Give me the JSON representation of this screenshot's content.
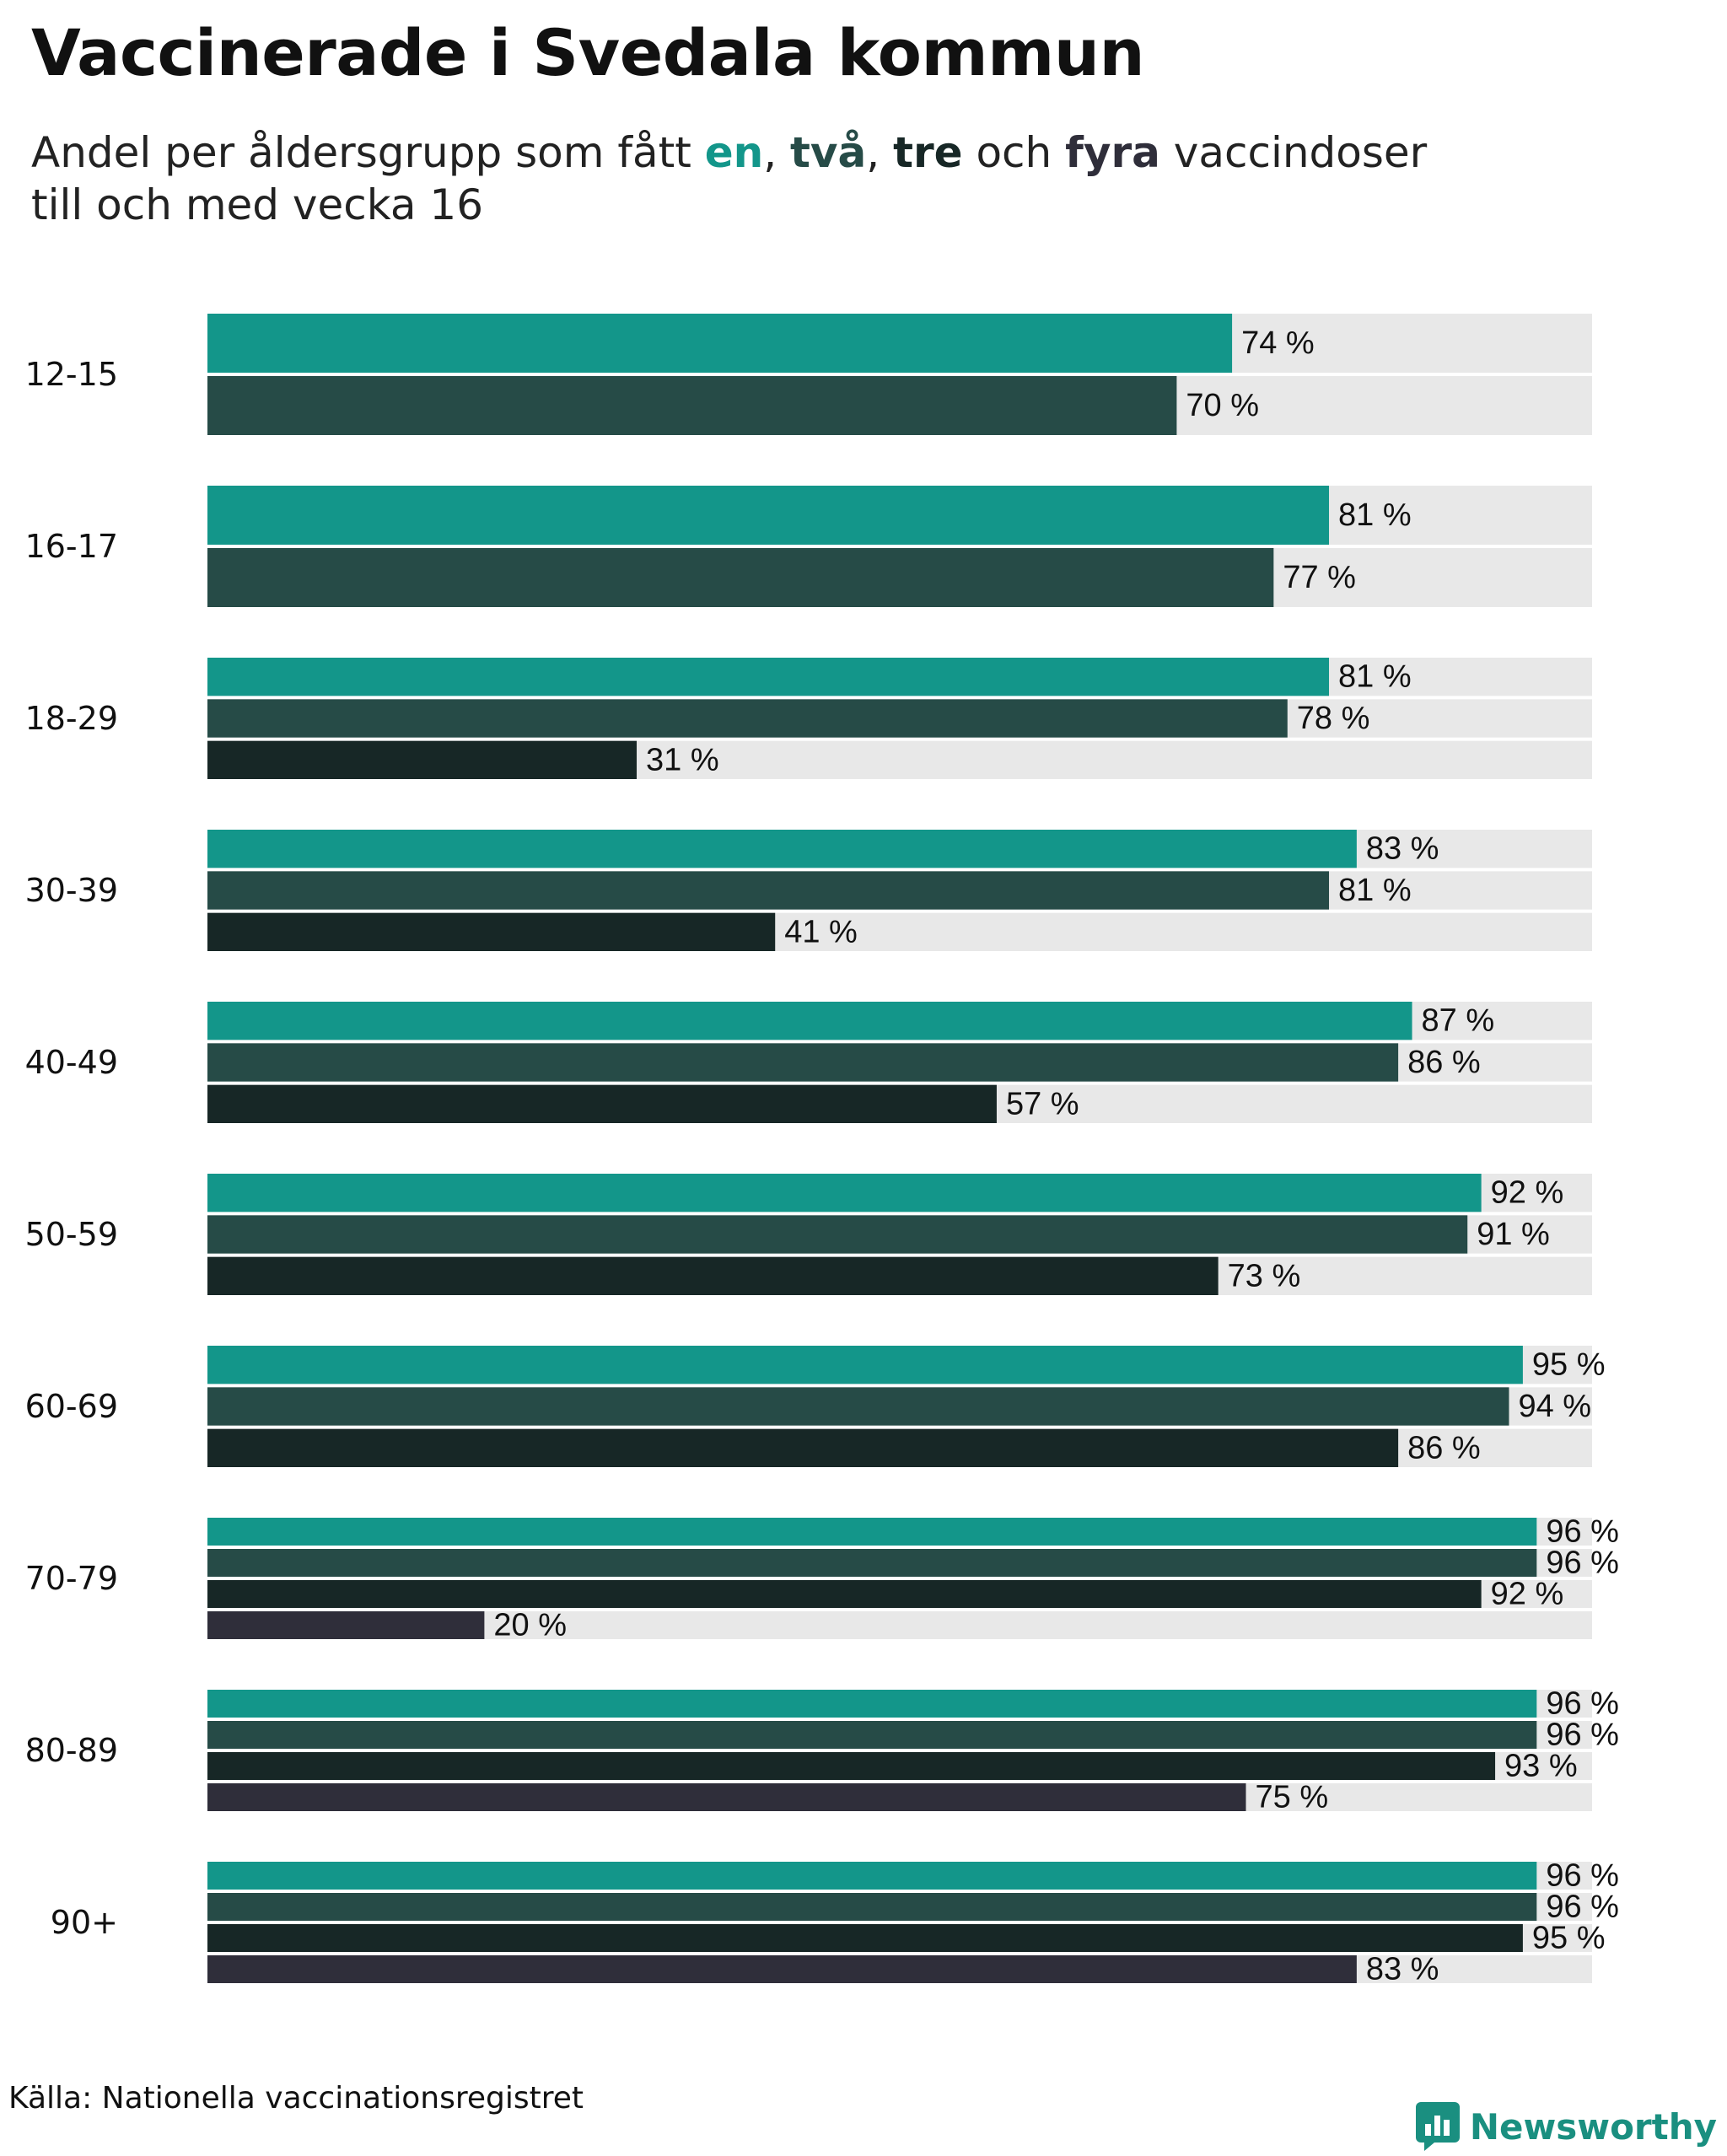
{
  "title": "Vaccinerade i Svedala kommun",
  "subtitle": {
    "before": "Andel per åldersgrupp som fått ",
    "dose1": "en",
    "sep1": ", ",
    "dose2": "två",
    "sep2": ", ",
    "dose3": "tre",
    "mid": " och ",
    "dose4": "fyra",
    "after_line1": " vaccindoser",
    "line2": "till och med vecka 16"
  },
  "colors": {
    "dose1": "#13968a",
    "dose2": "#264b47",
    "dose3": "#172726",
    "dose4": "#2f2e3a",
    "track": "#e8e8e8"
  },
  "source": "Källa: Nationella vaccinationsregistret",
  "brand": "Newsworthy",
  "brand_icon": "bar-chart-logo-icon",
  "chart_data": {
    "type": "bar",
    "orientation": "horizontal",
    "xlim": [
      0,
      100
    ],
    "unit": " %",
    "categories": [
      "12-15",
      "16-17",
      "18-29",
      "30-39",
      "40-49",
      "50-59",
      "60-69",
      "70-79",
      "80-89",
      "90+"
    ],
    "series": [
      {
        "name": "en",
        "color": "#13968a",
        "values": [
          74,
          81,
          81,
          83,
          87,
          92,
          95,
          96,
          96,
          96
        ]
      },
      {
        "name": "två",
        "color": "#264b47",
        "values": [
          70,
          77,
          78,
          81,
          86,
          91,
          94,
          96,
          96,
          96
        ]
      },
      {
        "name": "tre",
        "color": "#172726",
        "values": [
          null,
          null,
          31,
          41,
          57,
          73,
          86,
          92,
          93,
          95
        ]
      },
      {
        "name": "fyra",
        "color": "#2f2e3a",
        "values": [
          null,
          null,
          null,
          null,
          null,
          null,
          null,
          20,
          75,
          83
        ]
      }
    ]
  }
}
